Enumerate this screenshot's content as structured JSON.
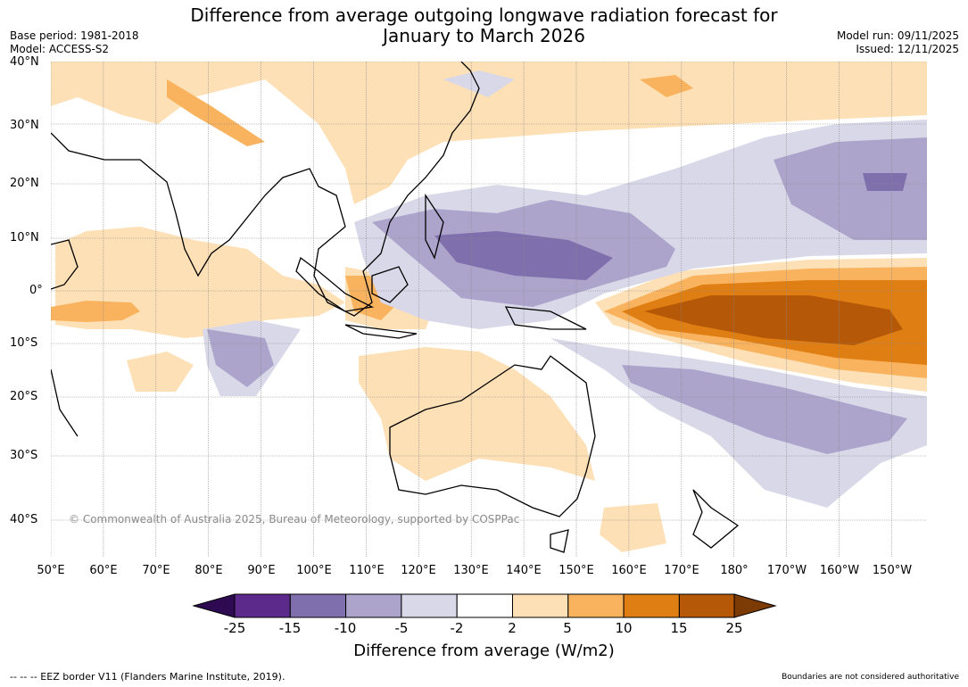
{
  "title_line1": "Difference from average outgoing longwave radiation forecast for",
  "title_line2": "January to March 2026",
  "base_period": "Base period: 1981-2018",
  "model": "Model: ACCESS-S2",
  "model_run": "Model run: 09/11/2025",
  "issued": "Issued: 12/11/2025",
  "copyright": "© Commonwealth of Australia 2025, Bureau of Meteorology, supported by COSPPac",
  "latitude_labels": [
    "40°N",
    "30°N",
    "20°N",
    "10°N",
    "0°",
    "10°S",
    "20°S",
    "30°S",
    "40°S"
  ],
  "longitude_labels": [
    "50°E",
    "60°E",
    "70°E",
    "80°E",
    "90°E",
    "100°E",
    "110°E",
    "120°E",
    "130°E",
    "140°E",
    "150°E",
    "160°E",
    "170°E",
    "180°",
    "170°W",
    "160°W",
    "150°W"
  ],
  "colorbar": {
    "ticks": [
      "-25",
      "-15",
      "-10",
      "-5",
      "-2",
      "2",
      "5",
      "10",
      "15",
      "25"
    ],
    "colors": [
      "#2d0a52",
      "#5b2a8a",
      "#7f6fad",
      "#ada4cc",
      "#d8d8e9",
      "#ffffff",
      "#fde0b5",
      "#f9b35e",
      "#df7e12",
      "#b55808",
      "#7c3a05"
    ],
    "label": "Difference from average (W/m2)"
  },
  "footer_left": "--  --  -- EEZ border V11 (Flanders Marine Institute, 2019).",
  "footer_right": "Boundaries are not considered authoritative"
}
